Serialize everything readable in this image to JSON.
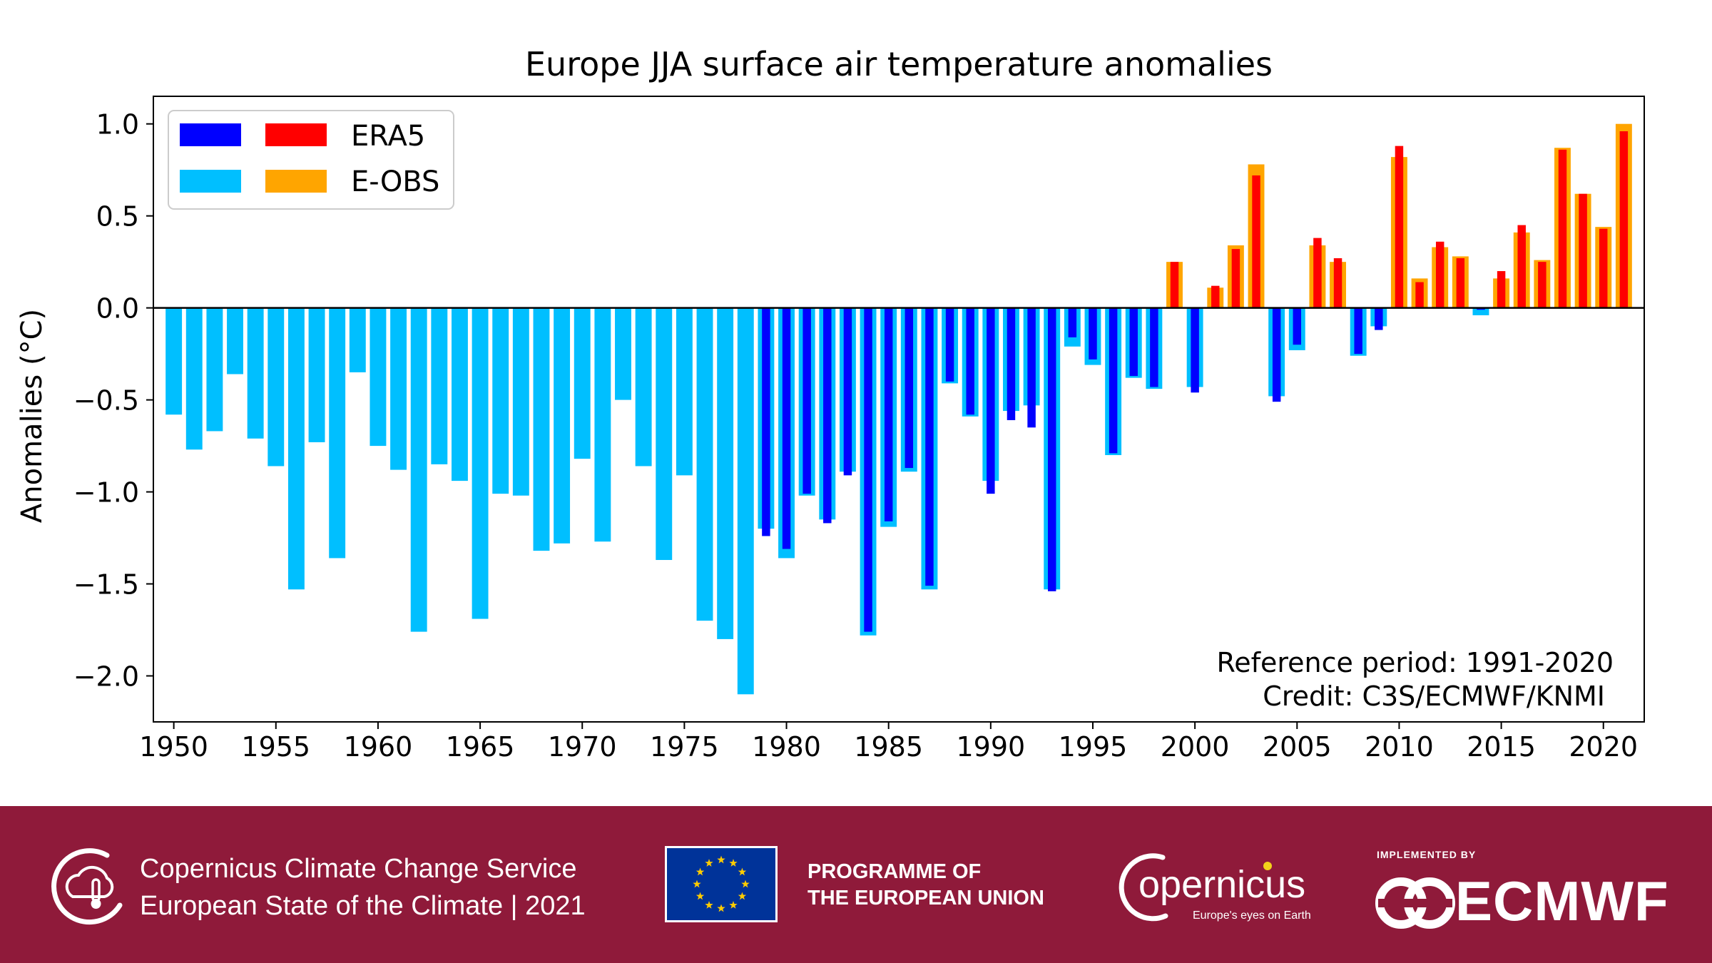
{
  "chart_data": {
    "type": "bar",
    "title": "Europe JJA surface air temperature anomalies",
    "xlabel": "",
    "ylabel": "Anomalies (°C)",
    "xlim": [
      1949,
      2022
    ],
    "ylim": [
      -2.25,
      1.15
    ],
    "xticks": [
      1950,
      1955,
      1960,
      1965,
      1970,
      1975,
      1980,
      1985,
      1990,
      1995,
      2000,
      2005,
      2010,
      2015,
      2020
    ],
    "xtick_labels": [
      "1950",
      "1955",
      "1960",
      "1965",
      "1970",
      "1975",
      "1980",
      "1985",
      "1990",
      "1995",
      "2000",
      "2005",
      "2010",
      "2015",
      "2020"
    ],
    "yticks": [
      1.0,
      0.5,
      0.0,
      -0.5,
      -1.0,
      -1.5,
      -2.0
    ],
    "ytick_labels": [
      "1.0",
      "0.5",
      "0.0",
      "−0.5",
      "−1.0",
      "−1.5",
      "−2.0"
    ],
    "colors": {
      "era5_negative": "#0000ff",
      "era5_positive": "#ff0000",
      "eobs_negative": "#00bfff",
      "eobs_positive": "#ffa500"
    },
    "legend": {
      "placement": "top-left",
      "entries": [
        {
          "label": "ERA5",
          "colors": [
            "#0000ff",
            "#ff0000"
          ]
        },
        {
          "label": "E-OBS",
          "colors": [
            "#00bfff",
            "#ffa500"
          ]
        }
      ]
    },
    "annotations": [
      "Reference period: 1991-2020",
      "Credit: C3S/ECMWF/KNMI"
    ],
    "series": [
      {
        "name": "E-OBS",
        "start_year": 1950,
        "values": [
          -0.58,
          -0.77,
          -0.67,
          -0.36,
          -0.71,
          -0.86,
          -1.53,
          -0.73,
          -1.36,
          -0.35,
          -0.75,
          -0.88,
          -1.76,
          -0.85,
          -0.94,
          -1.69,
          -1.01,
          -1.02,
          -1.32,
          -1.28,
          -0.82,
          -1.27,
          -0.5,
          -0.86,
          -1.37,
          -0.91,
          -1.7,
          -1.8,
          -2.1,
          -1.2,
          -1.36,
          -1.02,
          -1.15,
          -0.89,
          -1.78,
          -1.19,
          -0.89,
          -1.53,
          -0.41,
          -0.59,
          -0.94,
          -0.56,
          -0.53,
          -1.53,
          -0.21,
          -0.31,
          -0.8,
          -0.38,
          -0.44,
          0.25,
          -0.43,
          0.11,
          0.34,
          0.78,
          -0.48,
          -0.23,
          0.34,
          0.25,
          -0.26,
          -0.1,
          0.82,
          0.16,
          0.33,
          0.28,
          -0.04,
          0.16,
          0.41,
          0.26,
          0.87,
          0.62,
          0.44,
          1.0
        ]
      },
      {
        "name": "ERA5",
        "start_year": 1979,
        "values": [
          -1.24,
          -1.31,
          -1.01,
          -1.17,
          -0.91,
          -1.76,
          -1.16,
          -0.87,
          -1.51,
          -0.4,
          -0.58,
          -1.01,
          -0.61,
          -0.65,
          -1.54,
          -0.16,
          -0.28,
          -0.79,
          -0.37,
          -0.43,
          0.25,
          -0.46,
          0.12,
          0.32,
          0.72,
          -0.51,
          -0.2,
          0.38,
          0.27,
          -0.25,
          -0.12,
          0.88,
          0.14,
          0.36,
          0.27,
          -0.01,
          0.2,
          0.45,
          0.25,
          0.86,
          0.62,
          0.43,
          0.96
        ]
      }
    ]
  },
  "footer": {
    "c3s_line1": "Copernicus Climate Change Service",
    "c3s_line2": "European State of the Climate | 2021",
    "programme_line1": "PROGRAMME OF",
    "programme_line2": "THE EUROPEAN UNION",
    "copernicus_logo_text": "opernicus",
    "copernicus_tagline": "Europe's eyes on Earth",
    "implemented_by": "IMPLEMENTED BY",
    "ecmwf_logo_text": "ECMWF"
  }
}
